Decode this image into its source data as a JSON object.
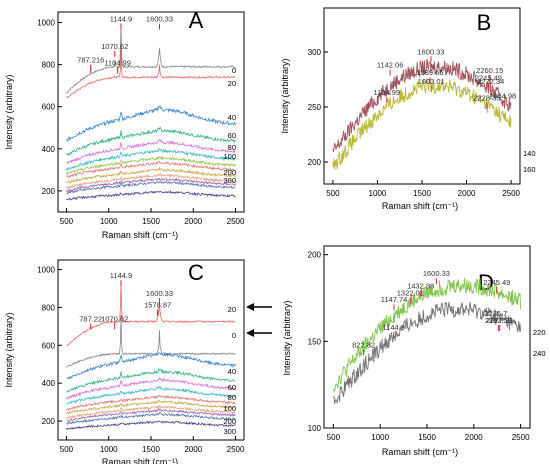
{
  "figure": {
    "panels": [
      "A",
      "B",
      "C",
      "D"
    ]
  },
  "chart_data": [
    {
      "panel": "A",
      "type": "line",
      "xlabel": "Raman shift (cm⁻¹)",
      "ylabel": "Intensity (arbitrary)",
      "xlim": [
        400,
        2600
      ],
      "ylim": [
        100,
        1050
      ],
      "xticks": [
        500,
        1000,
        1500,
        2000,
        2500
      ],
      "yticks": [
        200,
        400,
        600,
        800,
        1000
      ],
      "grid": false,
      "series": [
        {
          "name": "0",
          "color": "#7f7f7f",
          "base": 790,
          "startY": 665,
          "bump": 0,
          "peak": 1,
          "points": [
            [
              787.216,
              795
            ],
            [
              1070.62,
              815
            ],
            [
              1104.99,
              775
            ],
            [
              1144.9,
              985
            ],
            [
              1600.33,
              880
            ]
          ]
        },
        {
          "name": "20",
          "color": "#ef5d5d",
          "base": 740,
          "startY": 640,
          "bump": 0,
          "peak": 0.5,
          "points": [
            [
              1144.9,
              880
            ],
            [
              1600.33,
              800
            ]
          ]
        },
        {
          "name": "40",
          "color": "#2f7fd0",
          "base": 515,
          "startY": 440,
          "bump": 70,
          "peak": 0.35,
          "points": []
        },
        {
          "name": "60",
          "color": "#29b07a",
          "base": 435,
          "startY": 370,
          "bump": 50,
          "peak": 0.25,
          "points": []
        },
        {
          "name": "80",
          "color": "#d46ad4",
          "base": 385,
          "startY": 330,
          "bump": 45,
          "peak": 0.2,
          "points": []
        },
        {
          "name": "100",
          "color": "#2ab6c6",
          "base": 350,
          "startY": 300,
          "bump": 40,
          "peak": 0.15,
          "points": []
        },
        {
          "name": "200",
          "color": "#c8a23a",
          "base": 270,
          "startY": 240,
          "bump": 30,
          "peak": 0.1,
          "points": []
        },
        {
          "name": "300",
          "color": "#4f6fa8",
          "base": 215,
          "startY": 190,
          "bump": 25,
          "peak": 0.1,
          "points": []
        },
        {
          "name": "",
          "color": "#e0a070",
          "base": 245,
          "startY": 215,
          "bump": 28,
          "peak": 0.1,
          "points": []
        },
        {
          "name": "",
          "color": "#9b59b6",
          "base": 230,
          "startY": 200,
          "bump": 25,
          "peak": 0.1,
          "points": []
        },
        {
          "name": "",
          "color": "#e07070",
          "base": 300,
          "startY": 265,
          "bump": 32,
          "peak": 0.1,
          "points": []
        },
        {
          "name": "",
          "color": "#8ec63f",
          "base": 320,
          "startY": 280,
          "bump": 35,
          "peak": 0.1,
          "points": []
        },
        {
          "name": "",
          "color": "#3a3a8a",
          "base": 175,
          "startY": 160,
          "bump": 20,
          "peak": 0.05,
          "points": []
        }
      ],
      "peak_labels": [
        {
          "text": "1144.9",
          "x": 1144.9,
          "y": 1000
        },
        {
          "text": "1600.33",
          "x": 1600.33,
          "y": 1000
        },
        {
          "text": "1070.62",
          "x": 1070.62,
          "y": 870
        },
        {
          "text": "787.216",
          "x": 787.216,
          "y": 805
        },
        {
          "text": "1104.99",
          "x": 1104.99,
          "y": 790
        }
      ],
      "legend_labels": [
        "0",
        "20",
        "40",
        "60",
        "80",
        "100",
        "200",
        "300"
      ]
    },
    {
      "panel": "B",
      "type": "line",
      "xlabel": "Raman shift (cm⁻¹)",
      "ylabel": "Intensity (arbitrary)",
      "xlim": [
        400,
        2600
      ],
      "ylim": [
        180,
        340
      ],
      "xticks": [
        500,
        1000,
        1500,
        2000,
        2500
      ],
      "yticks": [
        200,
        250,
        300
      ],
      "grid": false,
      "series": [
        {
          "name": "140",
          "color": "#9a4a52",
          "start": 205,
          "mid": 285,
          "end": 245
        },
        {
          "name": "160",
          "color": "#b5b52a",
          "start": 192,
          "mid": 268,
          "end": 230
        }
      ],
      "peak_labels": [
        {
          "text": "1600.33",
          "x": 1600.33,
          "y": 297
        },
        {
          "text": "1142.06",
          "x": 1142.06,
          "y": 285
        },
        {
          "text": "1589.65",
          "x": 1589.65,
          "y": 278
        },
        {
          "text": "1603.01",
          "x": 1603.01,
          "y": 270
        },
        {
          "text": "1104.99",
          "x": 1104.99,
          "y": 260
        },
        {
          "text": "2260.15",
          "x": 2260.15,
          "y": 280
        },
        {
          "text": "2272.34",
          "x": 2272.34,
          "y": 270
        },
        {
          "text": "2245.49",
          "x": 2245.49,
          "y": 273
        },
        {
          "text": "2228.35",
          "x": 2228.35,
          "y": 255
        },
        {
          "text": "2404.98",
          "x": 2404.98,
          "y": 257
        }
      ],
      "legend_labels": [
        "140",
        "160"
      ]
    },
    {
      "panel": "C",
      "type": "line",
      "xlabel": "Raman shift (cm⁻¹)",
      "ylabel": "Intensity (arbitrary)",
      "xlim": [
        400,
        2600
      ],
      "ylim": [
        100,
        1050
      ],
      "xticks": [
        500,
        1000,
        1500,
        2000,
        2500
      ],
      "yticks": [
        200,
        400,
        600,
        800,
        1000
      ],
      "grid": false,
      "series": [
        {
          "name": "20",
          "color": "#ef5d5d",
          "base": 725,
          "startY": 595,
          "bump": 0,
          "peak": 1,
          "points": [
            [
              787.22,
              700
            ],
            [
              1070.62,
              715
            ],
            [
              1144.9,
              935
            ],
            [
              1578.87,
              790
            ],
            [
              1600.33,
              825
            ]
          ]
        },
        {
          "name": "0",
          "color": "#7f7f7f",
          "base": 555,
          "startY": 485,
          "bump": 0,
          "peak": 0.8,
          "points": [
            [
              1144.9,
              760
            ],
            [
              1600.33,
              680
            ]
          ]
        },
        {
          "name": "40",
          "color": "#2f7fd0",
          "base": 490,
          "startY": 420,
          "bump": 60,
          "peak": 0.3,
          "points": []
        },
        {
          "name": "60",
          "color": "#29b07a",
          "base": 410,
          "startY": 355,
          "bump": 50,
          "peak": 0.25,
          "points": []
        },
        {
          "name": "80",
          "color": "#d46ad4",
          "base": 370,
          "startY": 320,
          "bump": 45,
          "peak": 0.2,
          "points": []
        },
        {
          "name": "100",
          "color": "#2ab6c6",
          "base": 330,
          "startY": 290,
          "bump": 40,
          "peak": 0.15,
          "points": []
        },
        {
          "name": "200",
          "color": "#c8a23a",
          "base": 270,
          "startY": 240,
          "bump": 30,
          "peak": 0.1,
          "points": []
        },
        {
          "name": "300",
          "color": "#4f6fa8",
          "base": 210,
          "startY": 185,
          "bump": 25,
          "peak": 0.1,
          "points": []
        },
        {
          "name": "",
          "color": "#e0a070",
          "base": 245,
          "startY": 215,
          "bump": 28,
          "peak": 0.1,
          "points": []
        },
        {
          "name": "",
          "color": "#9b59b6",
          "base": 230,
          "startY": 200,
          "bump": 25,
          "peak": 0.1,
          "points": []
        },
        {
          "name": "",
          "color": "#e07070",
          "base": 295,
          "startY": 260,
          "bump": 32,
          "peak": 0.1,
          "points": []
        },
        {
          "name": "",
          "color": "#3a3a8a",
          "base": 175,
          "startY": 160,
          "bump": 20,
          "peak": 0.05,
          "points": []
        }
      ],
      "peak_labels": [
        {
          "text": "1144.9",
          "x": 1144.9,
          "y": 950
        },
        {
          "text": "1600.33",
          "x": 1600.33,
          "y": 855
        },
        {
          "text": "1578.87",
          "x": 1578.87,
          "y": 795
        },
        {
          "text": "787.22",
          "x": 787.22,
          "y": 720
        },
        {
          "text": "1070.62",
          "x": 1070.62,
          "y": 720
        }
      ],
      "legend_labels": [
        "20",
        "0",
        "40",
        "60",
        "80",
        "100",
        "200",
        "300"
      ],
      "arrow_labels": [
        "20",
        "0"
      ]
    },
    {
      "panel": "D",
      "type": "line",
      "xlabel": "Raman shift (cm⁻¹)",
      "ylabel": "Intensity (arbitrary)",
      "xlim": [
        400,
        2600
      ],
      "ylim": [
        100,
        205
      ],
      "xticks": [
        500,
        1000,
        1500,
        2000,
        2500
      ],
      "yticks": [
        100,
        150,
        200
      ],
      "grid": false,
      "series": [
        {
          "name": "220",
          "color": "#7ac143",
          "start": 122,
          "mid": 178,
          "end": 170
        },
        {
          "name": "240",
          "color": "#6e6e6e",
          "start": 113,
          "mid": 165,
          "end": 155
        }
      ],
      "peak_labels": [
        {
          "text": "1600.33",
          "x": 1600.33,
          "y": 187
        },
        {
          "text": "1432.38",
          "x": 1432.38,
          "y": 180
        },
        {
          "text": "1322.01",
          "x": 1322.01,
          "y": 176
        },
        {
          "text": "1147.74",
          "x": 1147.74,
          "y": 172
        },
        {
          "text": "1144.9",
          "x": 1144.9,
          "y": 156
        },
        {
          "text": "822.82",
          "x": 822.82,
          "y": 146
        },
        {
          "text": "2245.49",
          "x": 2245.49,
          "y": 182
        },
        {
          "text": "2235.7",
          "x": 2235.7,
          "y": 164
        },
        {
          "text": "2262.59",
          "x": 2262.59,
          "y": 160
        },
        {
          "text": "2277.21",
          "x": 2277.21,
          "y": 160
        }
      ],
      "legend_labels": [
        "220",
        "240"
      ]
    }
  ]
}
